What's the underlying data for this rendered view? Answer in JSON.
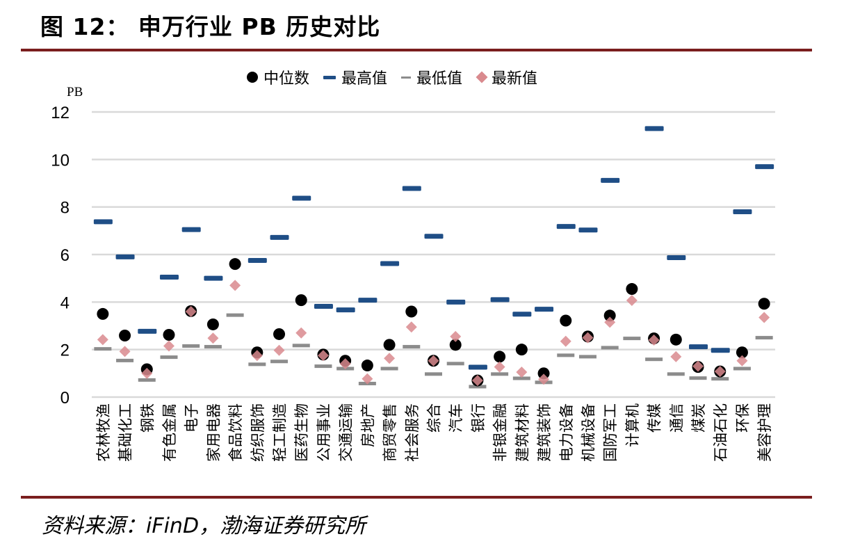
{
  "figure": {
    "title": "图 12： 申万行业 PB 历史对比",
    "source": "资料来源：iFinD，渤海证券研究所",
    "accent_color": "#7a1e1e"
  },
  "chart_data": {
    "type": "scatter",
    "title": "",
    "ylabel": "PB",
    "xlabel": "",
    "ylim": [
      0,
      12
    ],
    "yticks": [
      "0",
      "2",
      "4",
      "6",
      "8",
      "10",
      "12"
    ],
    "ytick_values": [
      0,
      2,
      4,
      6,
      8,
      10,
      12
    ],
    "grid": true,
    "legend_position": "top-center",
    "categories": [
      "农林牧渔",
      "基础化工",
      "钢铁",
      "有色金属",
      "电子",
      "家用电器",
      "食品饮料",
      "纺织服饰",
      "轻工制造",
      "医药生物",
      "公用事业",
      "交通运输",
      "房地产",
      "商贸零售",
      "社会服务",
      "综合",
      "汽车",
      "银行",
      "非银金融",
      "建筑材料",
      "建筑装饰",
      "电力设备",
      "机械设备",
      "国防军工",
      "计算机",
      "传媒",
      "通信",
      "煤炭",
      "石油石化",
      "环保",
      "美容护理"
    ],
    "series": [
      {
        "name": "中位数",
        "marker": "circle",
        "color": "#000000",
        "values": [
          3.5,
          2.59,
          1.17,
          2.62,
          3.62,
          3.06,
          5.6,
          1.88,
          2.65,
          4.08,
          1.79,
          1.53,
          1.33,
          2.2,
          3.6,
          1.53,
          2.2,
          0.7,
          1.7,
          2.0,
          1.0,
          3.22,
          2.55,
          3.43,
          4.55,
          2.47,
          2.42,
          1.27,
          1.08,
          1.88,
          3.93
        ]
      },
      {
        "name": "最高值",
        "marker": "bar",
        "color": "#1f4e86",
        "values": [
          7.38,
          5.9,
          2.77,
          5.05,
          7.05,
          5.0,
          null,
          5.75,
          6.72,
          8.37,
          3.82,
          3.67,
          4.08,
          5.62,
          8.78,
          6.77,
          4.0,
          1.26,
          4.1,
          3.49,
          3.7,
          7.18,
          7.03,
          9.12,
          null,
          11.3,
          5.87,
          2.12,
          1.97,
          7.8,
          9.7
        ]
      },
      {
        "name": "最低值",
        "marker": "dash",
        "color": "#8c8c8c",
        "values": [
          2.03,
          1.54,
          0.72,
          1.68,
          2.15,
          2.12,
          3.45,
          1.38,
          1.5,
          2.17,
          1.3,
          1.2,
          0.57,
          1.2,
          2.12,
          0.97,
          1.41,
          0.44,
          0.97,
          0.79,
          0.62,
          1.76,
          1.7,
          2.08,
          2.47,
          1.59,
          0.97,
          0.8,
          0.77,
          1.2,
          2.5
        ]
      },
      {
        "name": "最新值",
        "marker": "diamond",
        "color": "#d98a8e",
        "values": [
          2.42,
          1.92,
          1.0,
          2.15,
          3.6,
          2.48,
          4.7,
          1.75,
          1.97,
          2.7,
          1.75,
          1.4,
          0.77,
          1.63,
          2.95,
          1.53,
          2.55,
          0.7,
          1.27,
          1.05,
          0.75,
          2.35,
          2.5,
          3.15,
          4.07,
          2.4,
          1.7,
          1.3,
          1.08,
          1.53,
          3.35
        ]
      }
    ]
  }
}
